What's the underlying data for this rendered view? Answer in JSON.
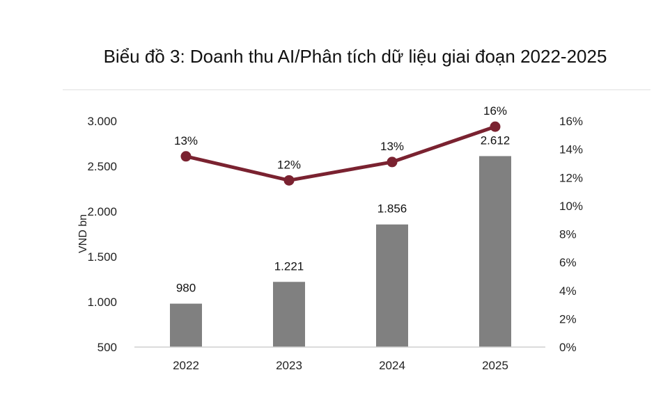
{
  "chart_data": {
    "type": "bar",
    "title": "Biểu đồ 3: Doanh thu AI/Phân tích dữ liệu giai đoạn 2022-2025",
    "categories": [
      "2022",
      "2023",
      "2024",
      "2025"
    ],
    "ylabel": "VND bn",
    "ylim": [
      500,
      3000
    ],
    "y_ticks": [
      "500",
      "1.000",
      "1.500",
      "2.000",
      "2.500",
      "3.000"
    ],
    "y2lim": [
      0,
      16
    ],
    "y2_ticks": [
      "0%",
      "2%",
      "4%",
      "6%",
      "8%",
      "10%",
      "12%",
      "14%",
      "16%"
    ],
    "grid": false,
    "series": [
      {
        "kind": "bar",
        "axis": "left",
        "values": [
          980,
          1221,
          1856,
          2612
        ],
        "labels": [
          "980",
          "1.221",
          "1.856",
          "2.612"
        ],
        "color": "#808080"
      },
      {
        "kind": "line",
        "axis": "right",
        "values": [
          13.5,
          11.8,
          13.1,
          15.6
        ],
        "labels": [
          "13%",
          "12%",
          "13%",
          "16%"
        ],
        "color": "#7a2230"
      }
    ]
  }
}
